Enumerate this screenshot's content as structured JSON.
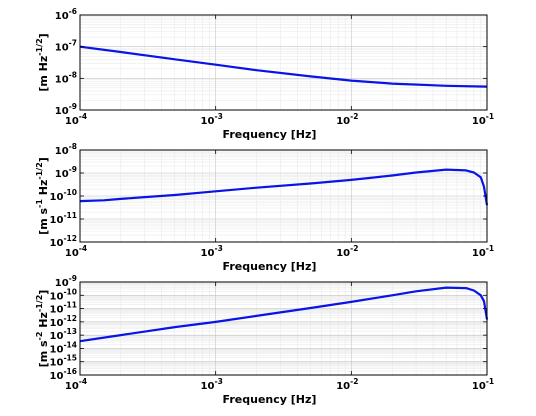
{
  "chart_data": [
    {
      "type": "line",
      "xlabel": "Frequency  [Hz]",
      "ylabel": "[m Hz-1/2]",
      "x_scale": "log",
      "y_scale": "log",
      "xlim": [
        0.0001,
        0.1
      ],
      "ylim": [
        1e-09,
        1e-06
      ],
      "grid": true,
      "x_ticks": [
        {
          "value": 0.0001,
          "base": "10",
          "exp": "-4"
        },
        {
          "value": 0.001,
          "base": "10",
          "exp": "-3"
        },
        {
          "value": 0.01,
          "base": "10",
          "exp": "-2"
        },
        {
          "value": 0.1,
          "base": "10",
          "exp": "-1"
        }
      ],
      "y_ticks": [
        {
          "value": 1e-09,
          "base": "10",
          "exp": "-9"
        },
        {
          "value": 1e-08,
          "base": "10",
          "exp": "-8"
        },
        {
          "value": 1e-07,
          "base": "10",
          "exp": "-7"
        },
        {
          "value": 1e-06,
          "base": "10",
          "exp": "-6"
        }
      ],
      "ylabel_parts": [
        {
          "text": "[m Hz",
          "sup": false
        },
        {
          "text": "-1/2",
          "sup": true
        },
        {
          "text": "]",
          "sup": false
        }
      ],
      "series": [
        {
          "color": "#0a14e6",
          "x": [
            0.0001,
            0.0002,
            0.0005,
            0.001,
            0.002,
            0.005,
            0.01,
            0.02,
            0.05,
            0.1
          ],
          "y": [
            1e-07,
            6.8e-08,
            4e-08,
            2.7e-08,
            1.8e-08,
            1.15e-08,
            8.5e-09,
            6.8e-09,
            5.8e-09,
            5.5e-09
          ]
        }
      ]
    },
    {
      "type": "line",
      "xlabel": "Frequency  [Hz]",
      "ylabel": "[m s-1 Hz-1/2]",
      "x_scale": "log",
      "y_scale": "log",
      "xlim": [
        0.0001,
        0.1
      ],
      "ylim": [
        1e-12,
        1e-08
      ],
      "grid": true,
      "x_ticks": [
        {
          "value": 0.0001,
          "base": "10",
          "exp": "-4"
        },
        {
          "value": 0.001,
          "base": "10",
          "exp": "-3"
        },
        {
          "value": 0.01,
          "base": "10",
          "exp": "-2"
        },
        {
          "value": 0.1,
          "base": "10",
          "exp": "-1"
        }
      ],
      "y_ticks": [
        {
          "value": 1e-12,
          "base": "10",
          "exp": "-12"
        },
        {
          "value": 1e-11,
          "base": "10",
          "exp": "-11"
        },
        {
          "value": 1e-10,
          "base": "10",
          "exp": "-10"
        },
        {
          "value": 1e-09,
          "base": "10",
          "exp": "-9"
        },
        {
          "value": 1e-08,
          "base": "10",
          "exp": "-8"
        }
      ],
      "ylabel_parts": [
        {
          "text": "[m s",
          "sup": false
        },
        {
          "text": "-1",
          "sup": true
        },
        {
          "text": " Hz",
          "sup": false
        },
        {
          "text": "-1/2",
          "sup": true
        },
        {
          "text": "]",
          "sup": false
        }
      ],
      "series": [
        {
          "color": "#0a14e6",
          "x": [
            0.0001,
            0.00015,
            0.0002,
            0.0003,
            0.0005,
            0.001,
            0.002,
            0.005,
            0.01,
            0.02,
            0.03,
            0.05,
            0.07,
            0.08,
            0.09,
            0.095,
            0.1
          ],
          "y": [
            6e-11,
            6.5e-11,
            7.5e-11,
            9e-11,
            1.1e-10,
            1.6e-10,
            2.3e-10,
            3.5e-10,
            5e-10,
            7.8e-10,
            1.05e-09,
            1.4e-09,
            1.3e-09,
            1.05e-09,
            6.5e-10,
            2.5e-10,
            4e-11
          ]
        }
      ]
    },
    {
      "type": "line",
      "xlabel": "Frequency  [Hz]",
      "ylabel": "[m s-2 Hz-1/2]",
      "x_scale": "log",
      "y_scale": "log",
      "xlim": [
        0.0001,
        0.1
      ],
      "ylim": [
        1e-16,
        1e-09
      ],
      "grid": true,
      "x_ticks": [
        {
          "value": 0.0001,
          "base": "10",
          "exp": "-4"
        },
        {
          "value": 0.001,
          "base": "10",
          "exp": "-3"
        },
        {
          "value": 0.01,
          "base": "10",
          "exp": "-2"
        },
        {
          "value": 0.1,
          "base": "10",
          "exp": "-1"
        }
      ],
      "y_ticks": [
        {
          "value": 1e-16,
          "base": "10",
          "exp": "-16"
        },
        {
          "value": 1e-15,
          "base": "10",
          "exp": "-15"
        },
        {
          "value": 1e-14,
          "base": "10",
          "exp": "-14"
        },
        {
          "value": 1e-13,
          "base": "10",
          "exp": "-13"
        },
        {
          "value": 1e-12,
          "base": "10",
          "exp": "-12"
        },
        {
          "value": 1e-11,
          "base": "10",
          "exp": "-11"
        },
        {
          "value": 1e-10,
          "base": "10",
          "exp": "-10"
        },
        {
          "value": 1e-09,
          "base": "10",
          "exp": "-9"
        }
      ],
      "ylabel_parts": [
        {
          "text": "[m s",
          "sup": false
        },
        {
          "text": "-2",
          "sup": true
        },
        {
          "text": " Hz",
          "sup": false
        },
        {
          "text": "-1/2",
          "sup": true
        },
        {
          "text": "]",
          "sup": false
        }
      ],
      "series": [
        {
          "color": "#0a14e6",
          "x": [
            0.0001,
            0.0002,
            0.0005,
            0.001,
            0.002,
            0.005,
            0.01,
            0.02,
            0.03,
            0.05,
            0.07,
            0.08,
            0.09,
            0.095,
            0.1
          ],
          "y": [
            3.5e-14,
            1e-13,
            4e-13,
            1e-12,
            2.8e-12,
            1.1e-11,
            3.2e-11,
            1e-10,
            2e-10,
            3.8e-10,
            3.5e-10,
            2.3e-10,
            1e-10,
            3.5e-11,
            1.5e-12
          ]
        }
      ]
    }
  ]
}
